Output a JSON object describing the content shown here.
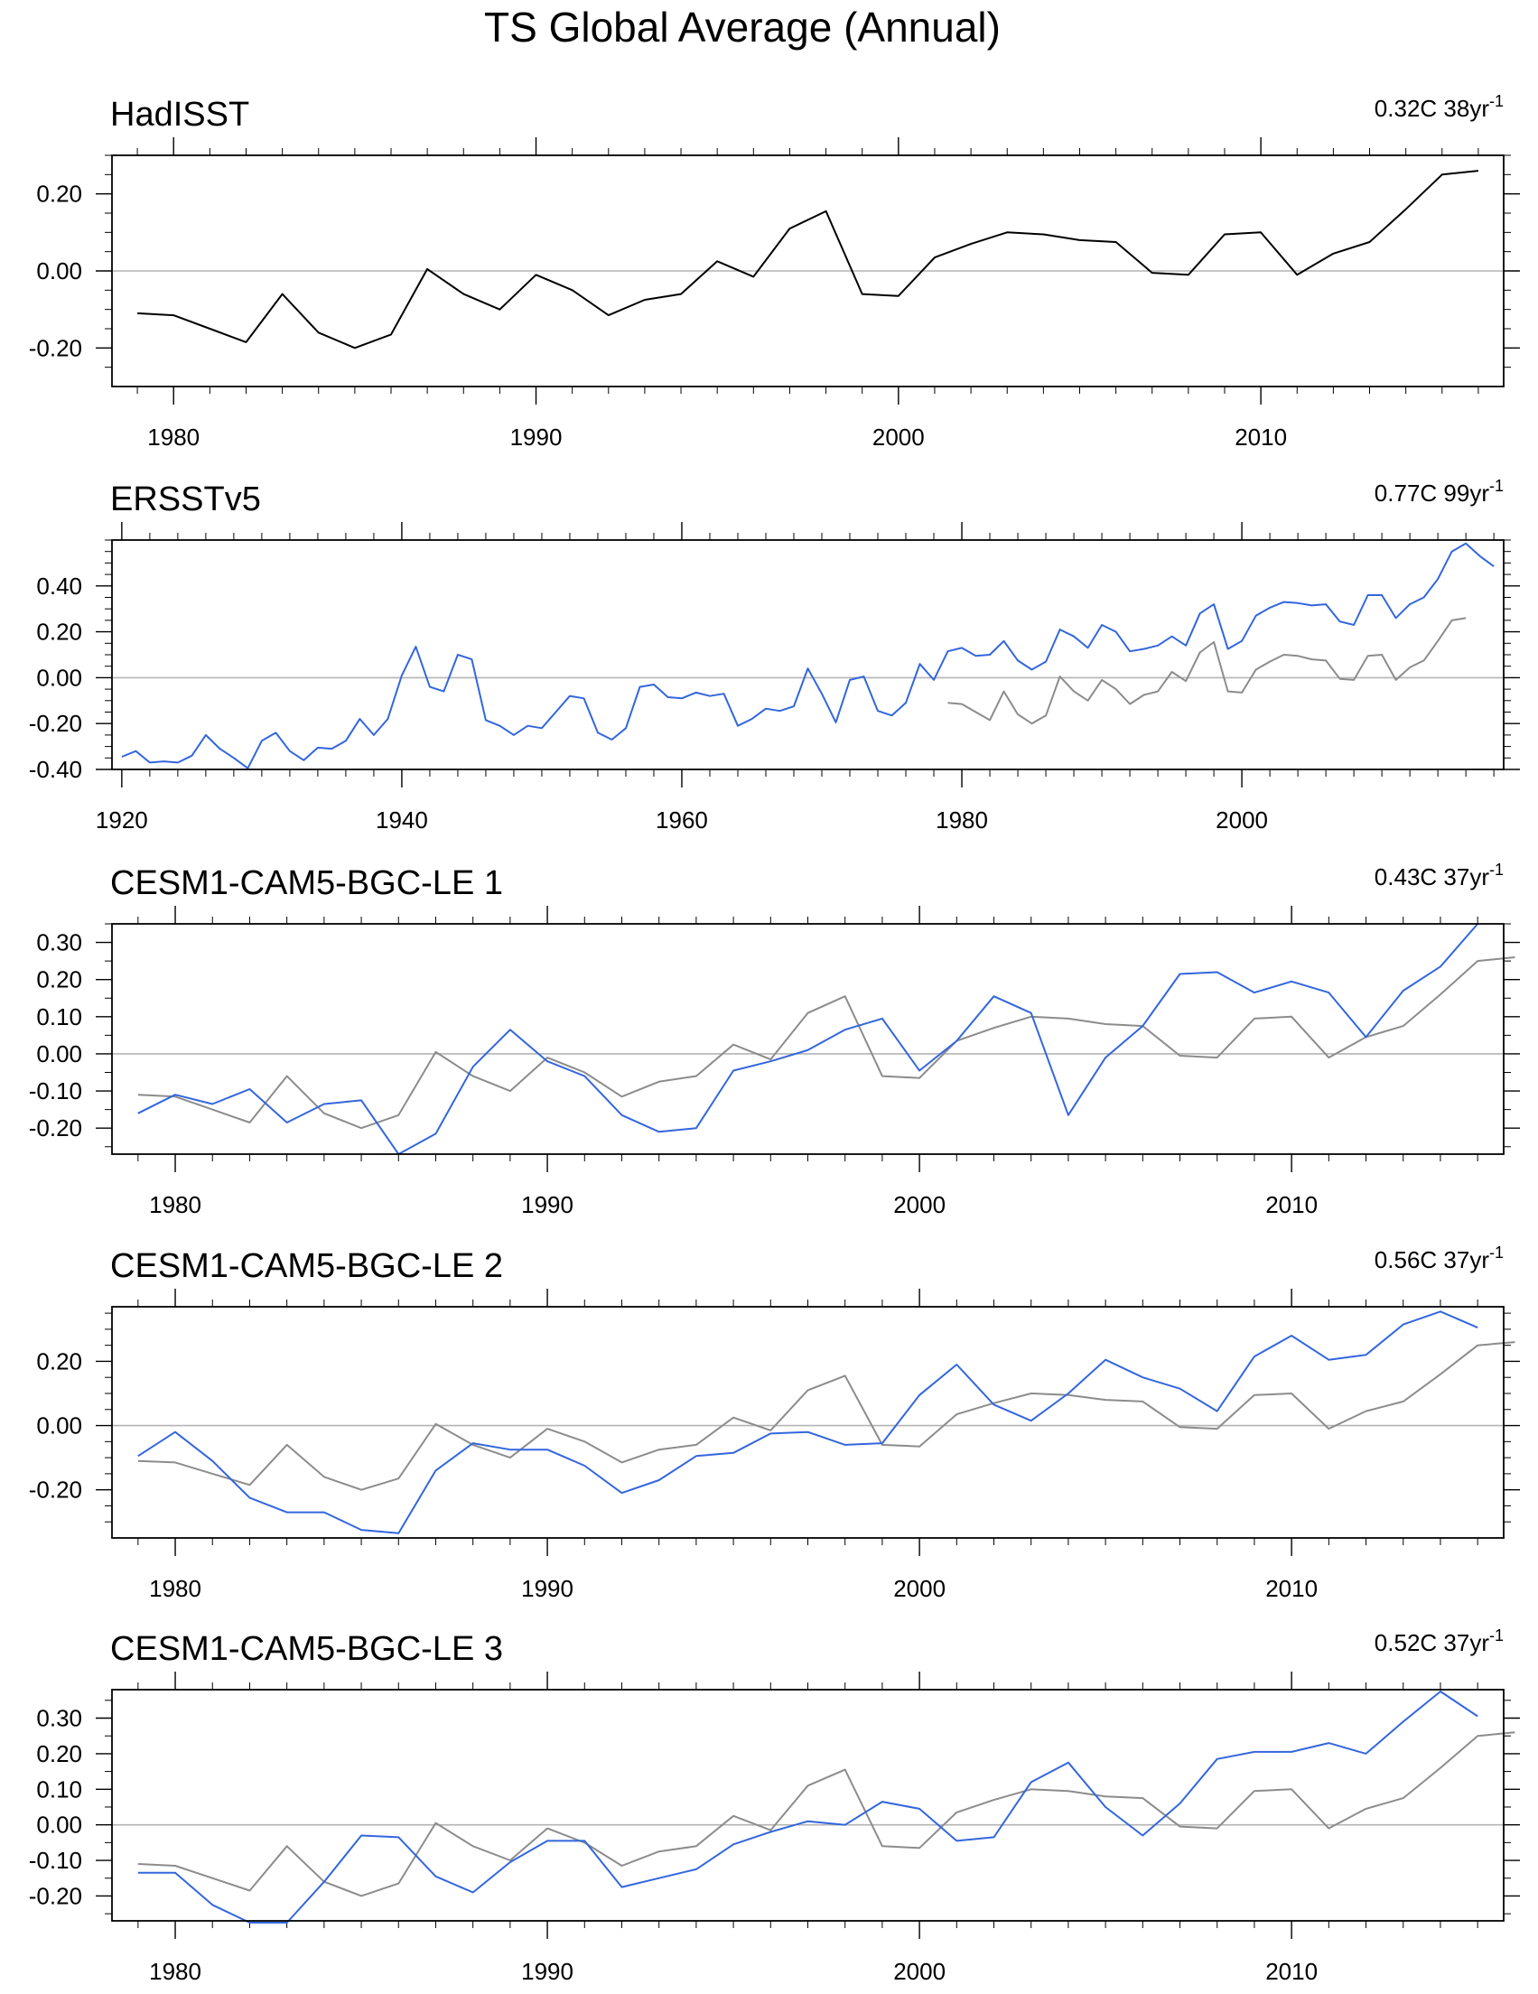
{
  "figure_title": "TS Global Average (Annual)",
  "colors": {
    "observed": "#000000",
    "reference": "#8c8c8c",
    "model": "#3366dd",
    "frame": "#000000",
    "zero_line": "#b4b4b4"
  },
  "chart_data": [
    {
      "type": "line",
      "title": "HadISST",
      "trend_label": "0.32C 38yr",
      "trend_exponent": "-1",
      "xlim": [
        1978.3,
        2016.7
      ],
      "ylim": [
        -0.3,
        0.3
      ],
      "xticks": [
        1980,
        1990,
        2000,
        2010
      ],
      "xtick_labels": [
        "1980",
        "1990",
        "2000",
        "2010"
      ],
      "yticks": [
        -0.2,
        0.0,
        0.2
      ],
      "ytick_labels": [
        "-0.20",
        "0.00",
        "0.20"
      ],
      "series": [
        {
          "name": "HadISST",
          "role": "observed",
          "start_year": 1979,
          "values": [
            -0.11,
            -0.115,
            -0.15,
            -0.185,
            -0.06,
            -0.16,
            -0.2,
            -0.165,
            0.005,
            -0.06,
            -0.1,
            -0.01,
            -0.05,
            -0.115,
            -0.075,
            -0.06,
            0.025,
            -0.015,
            0.11,
            0.155,
            -0.06,
            -0.065,
            0.035,
            0.07,
            0.1,
            0.095,
            0.08,
            0.075,
            -0.005,
            -0.01,
            0.095,
            0.1,
            -0.01,
            0.045,
            0.075,
            0.16,
            0.25,
            0.26
          ]
        }
      ]
    },
    {
      "type": "line",
      "title": "ERSSTv5",
      "trend_label": "0.77C 99yr",
      "trend_exponent": "-1",
      "xlim": [
        1919.3,
        2018.7
      ],
      "ylim": [
        -0.4,
        0.6
      ],
      "xticks": [
        1920,
        1940,
        1960,
        1980,
        2000
      ],
      "xtick_labels": [
        "1920",
        "1940",
        "1960",
        "1980",
        "2000"
      ],
      "yticks": [
        -0.4,
        -0.2,
        0.0,
        0.2,
        0.4
      ],
      "ytick_labels": [
        "-0.40",
        "-0.20",
        "0.00",
        "0.20",
        "0.40"
      ],
      "series": [
        {
          "name": "HadISST",
          "role": "reference",
          "start_year": 1979,
          "values": [
            -0.11,
            -0.115,
            -0.15,
            -0.185,
            -0.06,
            -0.16,
            -0.2,
            -0.165,
            0.005,
            -0.06,
            -0.1,
            -0.01,
            -0.05,
            -0.115,
            -0.075,
            -0.06,
            0.025,
            -0.015,
            0.11,
            0.155,
            -0.06,
            -0.065,
            0.035,
            0.07,
            0.1,
            0.095,
            0.08,
            0.075,
            -0.005,
            -0.01,
            0.095,
            0.1,
            -0.01,
            0.045,
            0.075,
            0.16,
            0.25,
            0.26
          ]
        },
        {
          "name": "ERSSTv5",
          "role": "model",
          "start_year": 1920,
          "values": [
            -0.345,
            -0.32,
            -0.37,
            -0.365,
            -0.37,
            -0.34,
            -0.25,
            -0.31,
            -0.35,
            -0.395,
            -0.275,
            -0.24,
            -0.32,
            -0.36,
            -0.305,
            -0.31,
            -0.275,
            -0.18,
            -0.25,
            -0.18,
            0.01,
            0.135,
            -0.04,
            -0.06,
            0.1,
            0.08,
            -0.185,
            -0.21,
            -0.25,
            -0.21,
            -0.22,
            -0.15,
            -0.08,
            -0.09,
            -0.24,
            -0.27,
            -0.22,
            -0.04,
            -0.03,
            -0.085,
            -0.09,
            -0.065,
            -0.08,
            -0.07,
            -0.21,
            -0.18,
            -0.135,
            -0.145,
            -0.125,
            0.04,
            -0.07,
            -0.195,
            -0.01,
            0.005,
            -0.145,
            -0.165,
            -0.11,
            0.06,
            -0.01,
            0.115,
            0.13,
            0.095,
            0.1,
            0.16,
            0.075,
            0.035,
            0.07,
            0.21,
            0.18,
            0.13,
            0.23,
            0.2,
            0.115,
            0.125,
            0.14,
            0.18,
            0.14,
            0.28,
            0.32,
            0.125,
            0.16,
            0.27,
            0.305,
            0.33,
            0.325,
            0.315,
            0.32,
            0.245,
            0.23,
            0.36,
            0.36,
            0.26,
            0.32,
            0.35,
            0.43,
            0.55,
            0.585,
            0.53,
            0.485
          ]
        }
      ]
    },
    {
      "type": "line",
      "title": "CESM1-CAM5-BGC-LE 1",
      "trend_label": "0.43C 37yr",
      "trend_exponent": "-1",
      "xlim": [
        1978.3,
        2015.7
      ],
      "ylim": [
        -0.27,
        0.35
      ],
      "xticks": [
        1980,
        1990,
        2000,
        2010
      ],
      "xtick_labels": [
        "1980",
        "1990",
        "2000",
        "2010"
      ],
      "yticks": [
        -0.2,
        -0.1,
        0.0,
        0.1,
        0.2,
        0.3
      ],
      "ytick_labels": [
        "-0.20",
        "-0.10",
        "0.00",
        "0.10",
        "0.20",
        "0.30"
      ],
      "series": [
        {
          "name": "HadISST",
          "role": "reference",
          "start_year": 1979,
          "values": [
            -0.11,
            -0.115,
            -0.15,
            -0.185,
            -0.06,
            -0.16,
            -0.2,
            -0.165,
            0.005,
            -0.06,
            -0.1,
            -0.01,
            -0.05,
            -0.115,
            -0.075,
            -0.06,
            0.025,
            -0.015,
            0.11,
            0.155,
            -0.06,
            -0.065,
            0.035,
            0.07,
            0.1,
            0.095,
            0.08,
            0.075,
            -0.005,
            -0.01,
            0.095,
            0.1,
            -0.01,
            0.045,
            0.075,
            0.16,
            0.25,
            0.26
          ]
        },
        {
          "name": "CESM1-CAM5-BGC-LE 1",
          "role": "model",
          "start_year": 1979,
          "values": [
            -0.16,
            -0.11,
            -0.135,
            -0.095,
            -0.185,
            -0.135,
            -0.125,
            -0.27,
            -0.215,
            -0.035,
            0.065,
            -0.02,
            -0.06,
            -0.165,
            -0.21,
            -0.2,
            -0.045,
            -0.02,
            0.01,
            0.065,
            0.095,
            -0.045,
            0.035,
            0.155,
            0.11,
            -0.165,
            -0.01,
            0.075,
            0.215,
            0.22,
            0.165,
            0.195,
            0.165,
            0.045,
            0.17,
            0.235,
            0.35
          ]
        }
      ]
    },
    {
      "type": "line",
      "title": "CESM1-CAM5-BGC-LE 2",
      "trend_label": "0.56C 37yr",
      "trend_exponent": "-1",
      "xlim": [
        1978.3,
        2015.7
      ],
      "ylim": [
        -0.35,
        0.37
      ],
      "xticks": [
        1980,
        1990,
        2000,
        2010
      ],
      "xtick_labels": [
        "1980",
        "1990",
        "2000",
        "2010"
      ],
      "yticks": [
        -0.2,
        0.0,
        0.2
      ],
      "ytick_labels": [
        "-0.20",
        "0.00",
        "0.20"
      ],
      "series": [
        {
          "name": "HadISST",
          "role": "reference",
          "start_year": 1979,
          "values": [
            -0.11,
            -0.115,
            -0.15,
            -0.185,
            -0.06,
            -0.16,
            -0.2,
            -0.165,
            0.005,
            -0.06,
            -0.1,
            -0.01,
            -0.05,
            -0.115,
            -0.075,
            -0.06,
            0.025,
            -0.015,
            0.11,
            0.155,
            -0.06,
            -0.065,
            0.035,
            0.07,
            0.1,
            0.095,
            0.08,
            0.075,
            -0.005,
            -0.01,
            0.095,
            0.1,
            -0.01,
            0.045,
            0.075,
            0.16,
            0.25,
            0.26
          ]
        },
        {
          "name": "CESM1-CAM5-BGC-LE 2",
          "role": "model",
          "start_year": 1979,
          "values": [
            -0.095,
            -0.02,
            -0.11,
            -0.225,
            -0.27,
            -0.27,
            -0.325,
            -0.335,
            -0.14,
            -0.055,
            -0.075,
            -0.075,
            -0.125,
            -0.21,
            -0.17,
            -0.095,
            -0.085,
            -0.025,
            -0.02,
            -0.06,
            -0.055,
            0.095,
            0.19,
            0.065,
            0.015,
            0.1,
            0.205,
            0.15,
            0.115,
            0.045,
            0.215,
            0.28,
            0.205,
            0.22,
            0.315,
            0.355,
            0.305
          ]
        }
      ]
    },
    {
      "type": "line",
      "title": "CESM1-CAM5-BGC-LE 3",
      "trend_label": "0.52C 37yr",
      "trend_exponent": "-1",
      "xlim": [
        1978.3,
        2015.7
      ],
      "ylim": [
        -0.27,
        0.38
      ],
      "xticks": [
        1980,
        1990,
        2000,
        2010
      ],
      "xtick_labels": [
        "1980",
        "1990",
        "2000",
        "2010"
      ],
      "yticks": [
        -0.2,
        -0.1,
        0.0,
        0.1,
        0.2,
        0.3
      ],
      "ytick_labels": [
        "-0.20",
        "-0.10",
        "0.00",
        "0.10",
        "0.20",
        "0.30"
      ],
      "series": [
        {
          "name": "HadISST",
          "role": "reference",
          "start_year": 1979,
          "values": [
            -0.11,
            -0.115,
            -0.15,
            -0.185,
            -0.06,
            -0.16,
            -0.2,
            -0.165,
            0.005,
            -0.06,
            -0.1,
            -0.01,
            -0.05,
            -0.115,
            -0.075,
            -0.06,
            0.025,
            -0.015,
            0.11,
            0.155,
            -0.06,
            -0.065,
            0.035,
            0.07,
            0.1,
            0.095,
            0.08,
            0.075,
            -0.005,
            -0.01,
            0.095,
            0.1,
            -0.01,
            0.045,
            0.075,
            0.16,
            0.25,
            0.26
          ]
        },
        {
          "name": "CESM1-CAM5-BGC-LE 3",
          "role": "model",
          "start_year": 1979,
          "values": [
            -0.135,
            -0.135,
            -0.225,
            -0.275,
            -0.275,
            -0.16,
            -0.03,
            -0.035,
            -0.145,
            -0.19,
            -0.105,
            -0.045,
            -0.045,
            -0.175,
            -0.15,
            -0.125,
            -0.055,
            -0.02,
            0.01,
            0.0,
            0.065,
            0.045,
            -0.045,
            -0.035,
            0.12,
            0.175,
            0.05,
            -0.03,
            0.06,
            0.185,
            0.205,
            0.205,
            0.23,
            0.2,
            0.29,
            0.375,
            0.305
          ]
        }
      ]
    }
  ]
}
